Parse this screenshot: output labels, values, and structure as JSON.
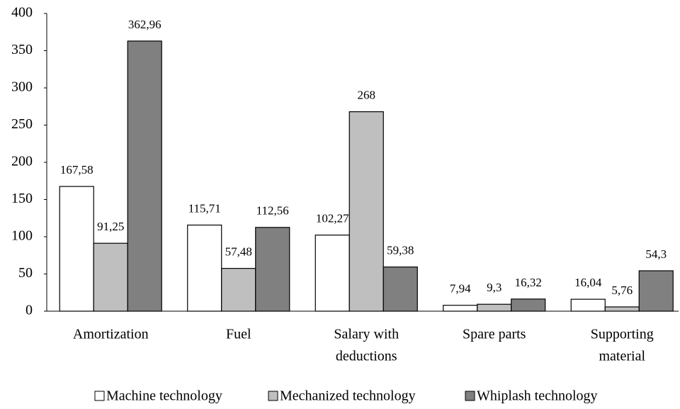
{
  "chart_data": {
    "type": "bar",
    "categories": [
      [
        "Amortization"
      ],
      [
        "Fuel"
      ],
      [
        "Salary with",
        "deductions"
      ],
      [
        "Spare parts"
      ],
      [
        "Supporting",
        "material"
      ]
    ],
    "series": [
      {
        "name": "Machine technology",
        "color": "#ffffff",
        "values": [
          167.58,
          115.71,
          102.27,
          7.94,
          16.04
        ],
        "value_labels": [
          "167,58",
          "115,71",
          "102,27",
          "7,94",
          "16,04"
        ]
      },
      {
        "name": "Mechanized technology",
        "color": "#bfbfbf",
        "values": [
          91.25,
          57.48,
          268,
          9.3,
          5.76
        ],
        "value_labels": [
          "91,25",
          "57,48",
          "268",
          "9,3",
          "5,76"
        ]
      },
      {
        "name": "Whiplash technology",
        "color": "#808080",
        "values": [
          362.96,
          112.56,
          59.38,
          16.32,
          54.3
        ],
        "value_labels": [
          "362,96",
          "112,56",
          "59,38",
          "16,32",
          "54,3"
        ]
      }
    ],
    "ylim": [
      0,
      400
    ],
    "yticks": [
      0,
      50,
      100,
      150,
      200,
      250,
      300,
      350,
      400
    ],
    "grid": false,
    "legend": "bottom"
  }
}
